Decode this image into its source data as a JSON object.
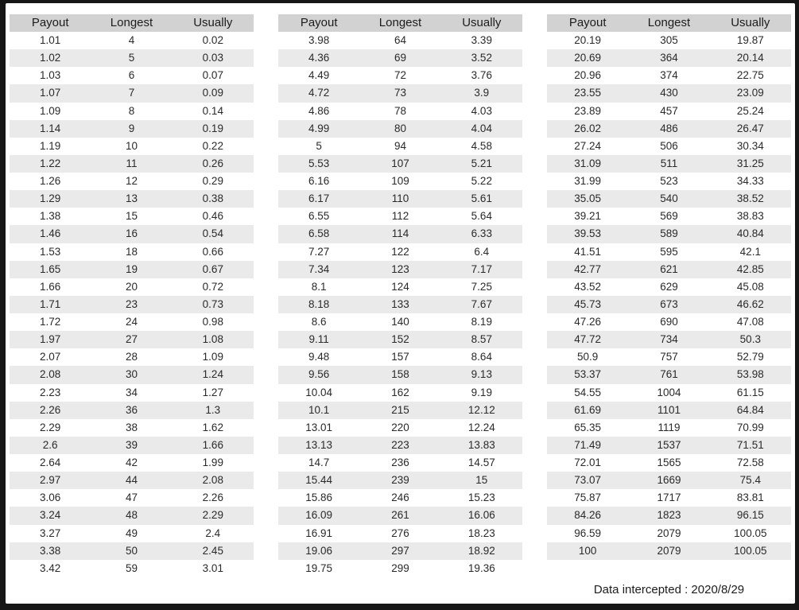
{
  "columns": [
    "Payout",
    "Longest",
    "Usually"
  ],
  "colors": {
    "frame": "#161616",
    "sheet_bg": "#ffffff",
    "header_bg": "#d2d2d2",
    "stripe_bg": "#eaeaea",
    "text": "#2a2a2a"
  },
  "footer": {
    "label": "Data intercepted : 2020/8/29"
  },
  "tables": [
    {
      "rows": [
        [
          "1.01",
          "4",
          "0.02"
        ],
        [
          "1.02",
          "5",
          "0.03"
        ],
        [
          "1.03",
          "6",
          "0.07"
        ],
        [
          "1.07",
          "7",
          "0.09"
        ],
        [
          "1.09",
          "8",
          "0.14"
        ],
        [
          "1.14",
          "9",
          "0.19"
        ],
        [
          "1.19",
          "10",
          "0.22"
        ],
        [
          "1.22",
          "11",
          "0.26"
        ],
        [
          "1.26",
          "12",
          "0.29"
        ],
        [
          "1.29",
          "13",
          "0.38"
        ],
        [
          "1.38",
          "15",
          "0.46"
        ],
        [
          "1.46",
          "16",
          "0.54"
        ],
        [
          "1.53",
          "18",
          "0.66"
        ],
        [
          "1.65",
          "19",
          "0.67"
        ],
        [
          "1.66",
          "20",
          "0.72"
        ],
        [
          "1.71",
          "23",
          "0.73"
        ],
        [
          "1.72",
          "24",
          "0.98"
        ],
        [
          "1.97",
          "27",
          "1.08"
        ],
        [
          "2.07",
          "28",
          "1.09"
        ],
        [
          "2.08",
          "30",
          "1.24"
        ],
        [
          "2.23",
          "34",
          "1.27"
        ],
        [
          "2.26",
          "36",
          "1.3"
        ],
        [
          "2.29",
          "38",
          "1.62"
        ],
        [
          "2.6",
          "39",
          "1.66"
        ],
        [
          "2.64",
          "42",
          "1.99"
        ],
        [
          "2.97",
          "44",
          "2.08"
        ],
        [
          "3.06",
          "47",
          "2.26"
        ],
        [
          "3.24",
          "48",
          "2.29"
        ],
        [
          "3.27",
          "49",
          "2.4"
        ],
        [
          "3.38",
          "50",
          "2.45"
        ],
        [
          "3.42",
          "59",
          "3.01"
        ]
      ]
    },
    {
      "rows": [
        [
          "3.98",
          "64",
          "3.39"
        ],
        [
          "4.36",
          "69",
          "3.52"
        ],
        [
          "4.49",
          "72",
          "3.76"
        ],
        [
          "4.72",
          "73",
          "3.9"
        ],
        [
          "4.86",
          "78",
          "4.03"
        ],
        [
          "4.99",
          "80",
          "4.04"
        ],
        [
          "5",
          "94",
          "4.58"
        ],
        [
          "5.53",
          "107",
          "5.21"
        ],
        [
          "6.16",
          "109",
          "5.22"
        ],
        [
          "6.17",
          "110",
          "5.61"
        ],
        [
          "6.55",
          "112",
          "5.64"
        ],
        [
          "6.58",
          "114",
          "6.33"
        ],
        [
          "7.27",
          "122",
          "6.4"
        ],
        [
          "7.34",
          "123",
          "7.17"
        ],
        [
          "8.1",
          "124",
          "7.25"
        ],
        [
          "8.18",
          "133",
          "7.67"
        ],
        [
          "8.6",
          "140",
          "8.19"
        ],
        [
          "9.11",
          "152",
          "8.57"
        ],
        [
          "9.48",
          "157",
          "8.64"
        ],
        [
          "9.56",
          "158",
          "9.13"
        ],
        [
          "10.04",
          "162",
          "9.19"
        ],
        [
          "10.1",
          "215",
          "12.12"
        ],
        [
          "13.01",
          "220",
          "12.24"
        ],
        [
          "13.13",
          "223",
          "13.83"
        ],
        [
          "14.7",
          "236",
          "14.57"
        ],
        [
          "15.44",
          "239",
          "15"
        ],
        [
          "15.86",
          "246",
          "15.23"
        ],
        [
          "16.09",
          "261",
          "16.06"
        ],
        [
          "16.91",
          "276",
          "18.23"
        ],
        [
          "19.06",
          "297",
          "18.92"
        ],
        [
          "19.75",
          "299",
          "19.36"
        ]
      ]
    },
    {
      "rows": [
        [
          "20.19",
          "305",
          "19.87"
        ],
        [
          "20.69",
          "364",
          "20.14"
        ],
        [
          "20.96",
          "374",
          "22.75"
        ],
        [
          "23.55",
          "430",
          "23.09"
        ],
        [
          "23.89",
          "457",
          "25.24"
        ],
        [
          "26.02",
          "486",
          "26.47"
        ],
        [
          "27.24",
          "506",
          "30.34"
        ],
        [
          "31.09",
          "511",
          "31.25"
        ],
        [
          "31.99",
          "523",
          "34.33"
        ],
        [
          "35.05",
          "540",
          "38.52"
        ],
        [
          "39.21",
          "569",
          "38.83"
        ],
        [
          "39.53",
          "589",
          "40.84"
        ],
        [
          "41.51",
          "595",
          "42.1"
        ],
        [
          "42.77",
          "621",
          "42.85"
        ],
        [
          "43.52",
          "629",
          "45.08"
        ],
        [
          "45.73",
          "673",
          "46.62"
        ],
        [
          "47.26",
          "690",
          "47.08"
        ],
        [
          "47.72",
          "734",
          "50.3"
        ],
        [
          "50.9",
          "757",
          "52.79"
        ],
        [
          "53.37",
          "761",
          "53.98"
        ],
        [
          "54.55",
          "1004",
          "61.15"
        ],
        [
          "61.69",
          "1101",
          "64.84"
        ],
        [
          "65.35",
          "1119",
          "70.99"
        ],
        [
          "71.49",
          "1537",
          "71.51"
        ],
        [
          "72.01",
          "1565",
          "72.58"
        ],
        [
          "73.07",
          "1669",
          "75.4"
        ],
        [
          "75.87",
          "1717",
          "83.81"
        ],
        [
          "84.26",
          "1823",
          "96.15"
        ],
        [
          "96.59",
          "2079",
          "100.05"
        ],
        [
          "100",
          "2079",
          "100.05"
        ]
      ]
    }
  ]
}
